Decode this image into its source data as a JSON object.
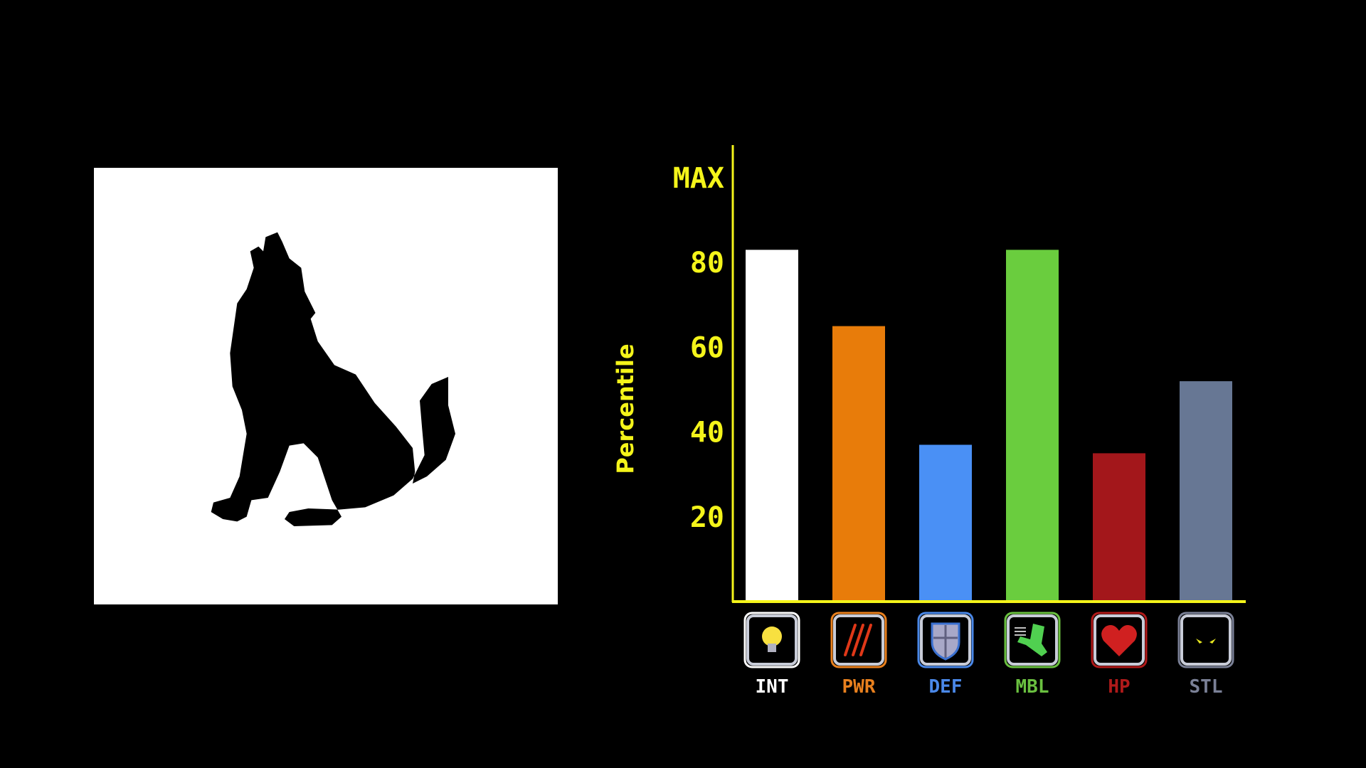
{
  "chart_data": {
    "type": "bar",
    "ylabel": "Percentile",
    "ylim": [
      0,
      100
    ],
    "yticks": [
      {
        "value": 20,
        "label": "20"
      },
      {
        "value": 40,
        "label": "40"
      },
      {
        "value": 60,
        "label": "60"
      },
      {
        "value": 80,
        "label": "80"
      },
      {
        "value": 100,
        "label": "MAX"
      }
    ],
    "categories": [
      "INT",
      "PWR",
      "DEF",
      "MBL",
      "HP",
      "STL"
    ],
    "values": [
      83,
      65,
      37,
      83,
      35,
      52
    ],
    "colors": [
      "#ffffff",
      "#e87c0a",
      "#4a90f5",
      "#6acd3e",
      "#a3171b",
      "#677794"
    ],
    "label_colors": [
      "#ffffff",
      "#e8801e",
      "#4a88e8",
      "#6ac040",
      "#b01a1a",
      "#7a8096"
    ],
    "icons": [
      "lightbulb-icon",
      "claw-marks-icon",
      "shield-icon",
      "boot-icon",
      "heart-icon",
      "glowing-eyes-icon"
    ],
    "axis_color": "#f4f41a",
    "grid": false,
    "legend": "none"
  }
}
